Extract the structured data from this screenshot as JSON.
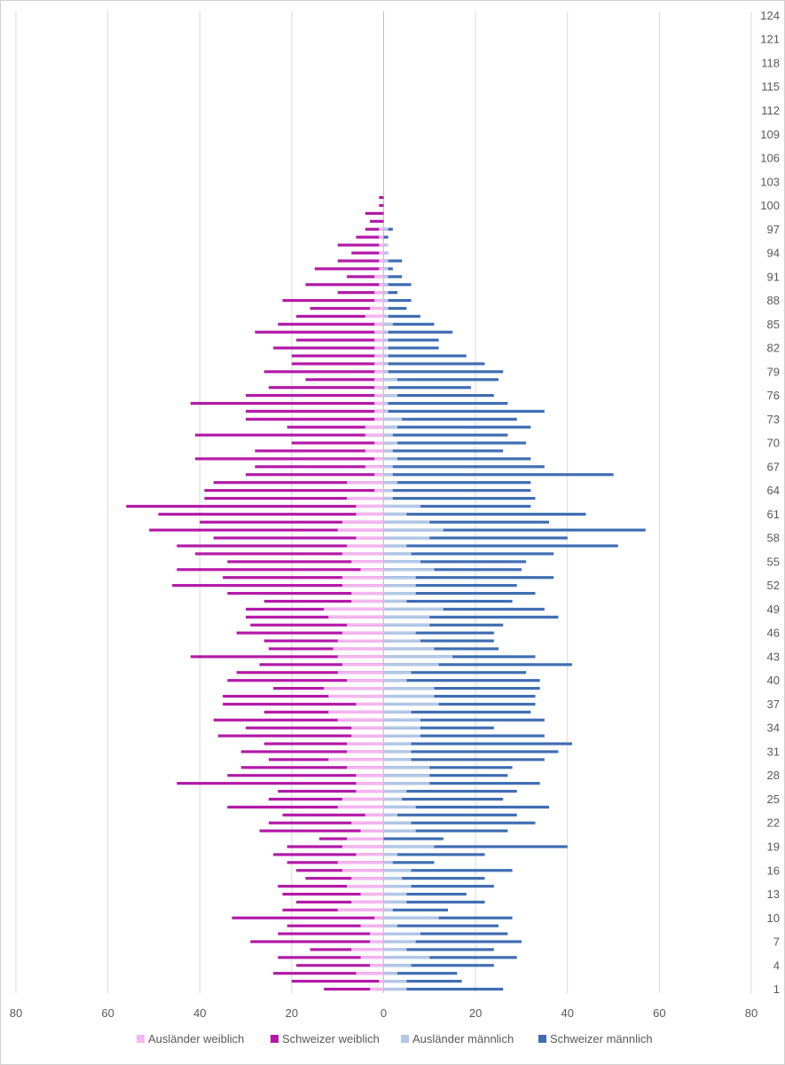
{
  "chart_data": {
    "type": "bar",
    "orientation": "horizontal",
    "chart_kind": "population pyramid",
    "title": "",
    "xlabel": "",
    "ylabel": "",
    "xlim": [
      -80,
      80
    ],
    "x_ticks": [
      -80,
      -60,
      -40,
      -20,
      0,
      20,
      40,
      60,
      80
    ],
    "x_tick_labels": [
      "80",
      "60",
      "40",
      "20",
      "0",
      "20",
      "40",
      "60",
      "80"
    ],
    "y_tick_labels": [
      "1",
      "4",
      "7",
      "10",
      "13",
      "16",
      "19",
      "22",
      "25",
      "28",
      "31",
      "34",
      "37",
      "40",
      "43",
      "46",
      "49",
      "52",
      "55",
      "58",
      "61",
      "64",
      "67",
      "70",
      "73",
      "76",
      "79",
      "82",
      "85",
      "88",
      "91",
      "94",
      "97",
      "100",
      "103",
      "106",
      "109",
      "112",
      "115",
      "118",
      "121",
      "124"
    ],
    "y_axis_side": "right",
    "grid": "vertical",
    "legend_position": "bottom",
    "ages": [
      1,
      2,
      3,
      4,
      5,
      6,
      7,
      8,
      9,
      10,
      11,
      12,
      13,
      14,
      15,
      16,
      17,
      18,
      19,
      20,
      21,
      22,
      23,
      24,
      25,
      26,
      27,
      28,
      29,
      30,
      31,
      32,
      33,
      34,
      35,
      36,
      37,
      38,
      39,
      40,
      41,
      42,
      43,
      44,
      45,
      46,
      47,
      48,
      49,
      50,
      51,
      52,
      53,
      54,
      55,
      56,
      57,
      58,
      59,
      60,
      61,
      62,
      63,
      64,
      65,
      66,
      67,
      68,
      69,
      70,
      71,
      72,
      73,
      74,
      75,
      76,
      77,
      78,
      79,
      80,
      81,
      82,
      83,
      84,
      85,
      86,
      87,
      88,
      89,
      90,
      91,
      92,
      93,
      94,
      95,
      96,
      97,
      98,
      99,
      100,
      101,
      102,
      103,
      104,
      105,
      106,
      107,
      108,
      109,
      110,
      111,
      112,
      113,
      114,
      115,
      116,
      117,
      118,
      119,
      120,
      121,
      122,
      123,
      124
    ],
    "series": [
      {
        "name": "Ausländer weiblich",
        "color": "#f4b6ee",
        "side": "left",
        "values": [
          3,
          1,
          6,
          3,
          5,
          7,
          3,
          3,
          5,
          2,
          10,
          7,
          5,
          8,
          7,
          9,
          10,
          6,
          9,
          8,
          5,
          7,
          4,
          10,
          9,
          6,
          6,
          6,
          8,
          12,
          8,
          8,
          7,
          7,
          10,
          12,
          6,
          12,
          13,
          8,
          10,
          9,
          10,
          11,
          10,
          9,
          8,
          12,
          13,
          7,
          7,
          9,
          9,
          5,
          7,
          9,
          8,
          6,
          10,
          9,
          6,
          6,
          8,
          2,
          8,
          2,
          4,
          2,
          4,
          2,
          4,
          4,
          2,
          2,
          2,
          2,
          2,
          2,
          2,
          2,
          2,
          2,
          2,
          2,
          2,
          4,
          3,
          2,
          2,
          1,
          2,
          1,
          1,
          1,
          1,
          1,
          1,
          0,
          0,
          0,
          0,
          0,
          0,
          0,
          0,
          0,
          0,
          0,
          0,
          0,
          0,
          0,
          0,
          0,
          0,
          0,
          0,
          0,
          0,
          0,
          0,
          0,
          0,
          0
        ]
      },
      {
        "name": "Schweizer weiblich",
        "color": "#b319a8",
        "side": "left",
        "values": [
          13,
          20,
          24,
          19,
          23,
          16,
          29,
          23,
          21,
          33,
          22,
          19,
          22,
          23,
          17,
          19,
          21,
          24,
          21,
          14,
          27,
          25,
          22,
          34,
          25,
          23,
          45,
          34,
          31,
          25,
          31,
          26,
          36,
          30,
          37,
          26,
          35,
          35,
          24,
          34,
          32,
          27,
          42,
          25,
          26,
          32,
          29,
          30,
          30,
          26,
          34,
          46,
          35,
          45,
          34,
          41,
          45,
          37,
          51,
          40,
          49,
          56,
          39,
          39,
          37,
          30,
          28,
          41,
          28,
          20,
          41,
          21,
          30,
          30,
          42,
          30,
          25,
          17,
          26,
          20,
          20,
          24,
          19,
          28,
          23,
          19,
          16,
          22,
          10,
          17,
          8,
          15,
          10,
          7,
          10,
          6,
          4,
          3,
          4,
          1,
          1,
          0,
          0,
          0,
          0,
          0,
          0,
          0,
          0,
          0,
          0,
          0,
          0,
          0,
          0,
          0,
          0,
          0,
          0,
          0,
          0,
          0,
          0,
          0
        ]
      },
      {
        "name": "Ausländer männlich",
        "color": "#b3c7e6",
        "side": "right",
        "values": [
          5,
          5,
          3,
          6,
          10,
          5,
          7,
          8,
          3,
          12,
          2,
          5,
          5,
          6,
          4,
          6,
          2,
          3,
          11,
          0,
          7,
          6,
          3,
          7,
          4,
          5,
          10,
          10,
          10,
          6,
          6,
          6,
          8,
          8,
          8,
          6,
          12,
          11,
          11,
          5,
          6,
          12,
          15,
          11,
          8,
          7,
          10,
          10,
          13,
          5,
          7,
          7,
          7,
          11,
          8,
          6,
          5,
          10,
          13,
          10,
          5,
          8,
          2,
          2,
          3,
          2,
          2,
          3,
          2,
          3,
          2,
          3,
          4,
          1,
          1,
          3,
          1,
          3,
          1,
          1,
          1,
          1,
          1,
          1,
          2,
          1,
          1,
          1,
          1,
          1,
          1,
          1,
          1,
          1,
          1,
          0,
          1,
          0,
          0,
          0,
          0,
          0,
          0,
          0,
          0,
          0,
          0,
          0,
          0,
          0,
          0,
          0,
          0,
          0,
          0,
          0,
          0,
          0,
          0,
          0,
          0,
          0,
          0,
          0
        ]
      },
      {
        "name": "Schweizer männlich",
        "color": "#3f6db3",
        "side": "right",
        "values": [
          26,
          17,
          16,
          24,
          29,
          24,
          30,
          27,
          25,
          28,
          14,
          22,
          18,
          24,
          22,
          28,
          11,
          22,
          40,
          13,
          27,
          33,
          29,
          36,
          26,
          29,
          34,
          27,
          28,
          35,
          38,
          41,
          35,
          24,
          35,
          32,
          33,
          33,
          34,
          34,
          31,
          41,
          33,
          25,
          24,
          24,
          26,
          38,
          35,
          28,
          33,
          29,
          37,
          30,
          31,
          37,
          51,
          40,
          57,
          36,
          44,
          32,
          33,
          32,
          32,
          50,
          35,
          32,
          26,
          31,
          27,
          32,
          29,
          35,
          27,
          24,
          19,
          25,
          26,
          22,
          18,
          12,
          12,
          15,
          11,
          8,
          5,
          6,
          3,
          6,
          4,
          2,
          4,
          1,
          0,
          1,
          2,
          0,
          0,
          0,
          0,
          0,
          0,
          0,
          0,
          0,
          0,
          0,
          0,
          0,
          0,
          0,
          0,
          0,
          0,
          0,
          0,
          0,
          0,
          0,
          0,
          0,
          0,
          0
        ]
      }
    ]
  }
}
